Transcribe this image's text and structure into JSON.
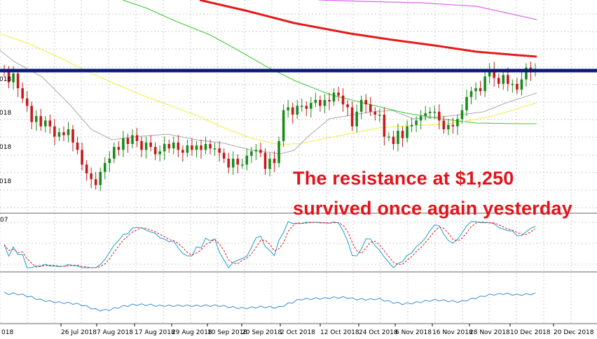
{
  "annotation": {
    "line1": "The resistance at $1,250",
    "line2": "survived once again yesterday"
  },
  "colors": {
    "candle_bull": "#1b8c1b",
    "candle_bear": "#c81b1b",
    "ma200": "#e31b1b",
    "ma100_magenta": "#dd66ee",
    "ma_green": "#33cc33",
    "ma_yellow": "#eeee44",
    "ma_gray": "#aaaaaa",
    "resistance": "#0a1a7a",
    "stoch_main": "#1a9fd0",
    "stoch_signal": "#e31b1b",
    "rsi_line": "#3a8fd8",
    "grid": "#cccccc",
    "annotation": "#e3131b"
  },
  "chart_data": {
    "type": "candlestick",
    "title": "",
    "resistance_level": 1250,
    "x_ticks": [
      "26 Jul 2018",
      "7 Aug 2018",
      "17 Aug 2018",
      "29 Aug 2018",
      "10 Sep 2018",
      "20 Sep 2018",
      "2 Oct 2018",
      "12 Oct 2018",
      "24 Oct 2018",
      "6 Nov 2018",
      "16 Nov 2018",
      "28 Nov 2018",
      "10 Dec 2018",
      "20 Dec 2018"
    ],
    "edge_labels": {
      "left_tick_fragment": "018",
      "left_price_fragments": [
        "018",
        "018",
        "018",
        "018"
      ],
      "stoch_panel_fragment": "07"
    },
    "candles_close": [
      1249,
      1242,
      1248,
      1238,
      1231,
      1226,
      1215,
      1219,
      1212,
      1216,
      1212,
      1205,
      1208,
      1206,
      1210,
      1201,
      1196,
      1186,
      1180,
      1176,
      1172,
      1181,
      1187,
      1190,
      1198,
      1196,
      1204,
      1200,
      1206,
      1202,
      1196,
      1201,
      1198,
      1193,
      1195,
      1200,
      1197,
      1201,
      1196,
      1194,
      1199,
      1196,
      1199,
      1196,
      1200,
      1197,
      1197,
      1194,
      1190,
      1184,
      1190,
      1186,
      1186,
      1192,
      1195,
      1196,
      1194,
      1183,
      1190,
      1187,
      1202,
      1223,
      1225,
      1220,
      1226,
      1226,
      1224,
      1228,
      1230,
      1226,
      1230,
      1229,
      1235,
      1233,
      1227,
      1225,
      1212,
      1222,
      1230,
      1227,
      1222,
      1220,
      1220,
      1205,
      1205,
      1200,
      1209,
      1204,
      1212,
      1213,
      1216,
      1219,
      1221,
      1222,
      1222,
      1216,
      1210,
      1213,
      1212,
      1217,
      1223,
      1232,
      1236,
      1238,
      1236,
      1246,
      1251,
      1245,
      1241,
      1247,
      1241,
      1241,
      1237,
      1244,
      1252,
      1249,
      1250
    ],
    "stochastic_range": [
      0,
      100
    ],
    "panels": [
      "price",
      "stochastic",
      "rsi"
    ]
  }
}
